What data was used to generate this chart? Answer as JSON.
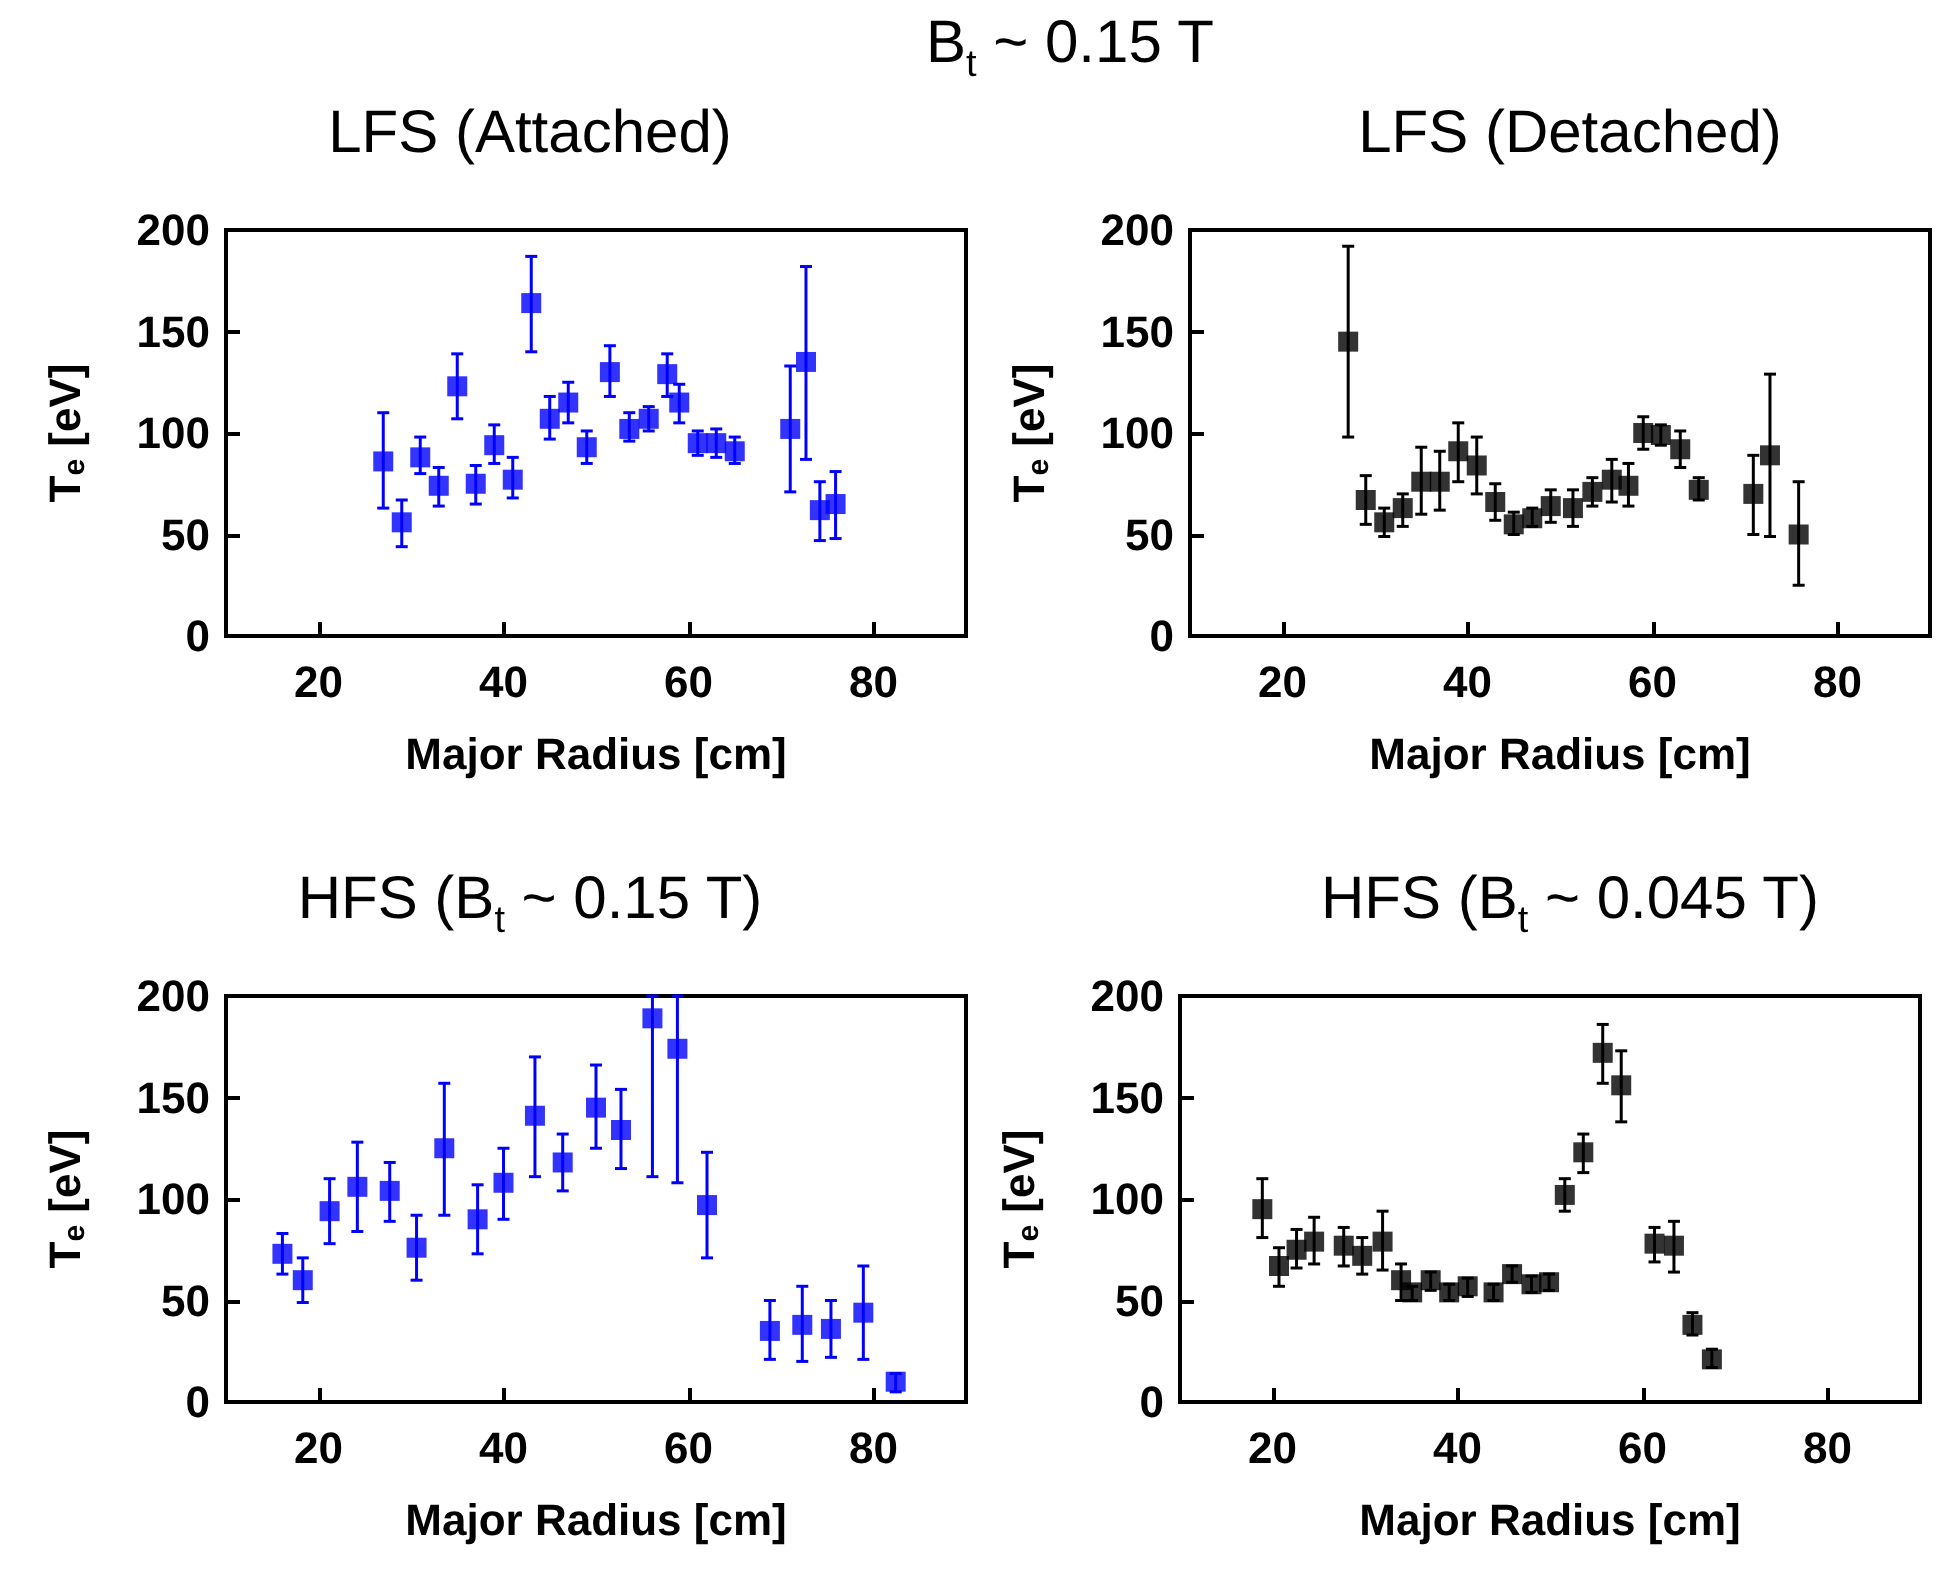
{
  "chart_data": [
    {
      "type": "scatter",
      "title": "LFS (Attached)",
      "annotations": [
        "B$_{t}$ ~ 0.15 T"
      ],
      "xlabel": "Major Radius [cm]",
      "ylabel": "T$_{e}$ [eV]",
      "xlim": [
        10,
        90
      ],
      "xticks": [
        20,
        40,
        60,
        80
      ],
      "ylim": [
        0,
        200
      ],
      "yticks": [
        0,
        50,
        100,
        150,
        200
      ],
      "grid": false,
      "marker": "square",
      "series": [
        {
          "color": "#0000ff",
          "x": [
            27,
            29,
            31,
            33,
            35,
            37,
            39,
            41,
            43,
            45,
            47,
            49,
            51.5,
            53.6,
            55.7,
            57.7,
            59,
            61,
            63,
            65,
            71,
            72.7,
            74.2,
            75.9
          ],
          "values": [
            86,
            56,
            88,
            74,
            123,
            75,
            94,
            77,
            164,
            107,
            115,
            93,
            130,
            102,
            107,
            129,
            115,
            95,
            95,
            91,
            102,
            135,
            62,
            65
          ],
          "errors": [
            [
              63,
              110
            ],
            [
              44,
              67
            ],
            [
              80,
              98
            ],
            [
              64,
              83
            ],
            [
              107,
              139
            ],
            [
              65,
              84
            ],
            [
              85,
              104
            ],
            [
              68,
              88
            ],
            [
              140,
              187
            ],
            [
              97,
              118
            ],
            [
              105,
              125
            ],
            [
              85,
              101
            ],
            [
              118,
              143
            ],
            [
              96,
              110
            ],
            [
              101,
              113
            ],
            [
              118,
              139
            ],
            [
              105,
              124
            ],
            [
              89,
              101
            ],
            [
              88,
              102
            ],
            [
              85,
              98
            ],
            [
              71,
              133
            ],
            [
              87,
              182
            ],
            [
              47,
              76
            ],
            [
              48,
              81
            ]
          ]
        }
      ]
    },
    {
      "type": "scatter",
      "title": "LFS (Detached)",
      "xlabel": "Major Radius [cm]",
      "ylabel": "T$_{e}$ [eV]",
      "xlim": [
        10,
        90
      ],
      "xticks": [
        20,
        40,
        60,
        80
      ],
      "ylim": [
        0,
        200
      ],
      "yticks": [
        0,
        50,
        100,
        150,
        200
      ],
      "grid": false,
      "marker": "square",
      "series": [
        {
          "color": "#000000",
          "x": [
            27.1,
            29,
            31,
            33,
            35,
            37,
            39,
            41,
            43,
            45,
            47,
            49,
            51.4,
            53.5,
            55.6,
            57.4,
            59,
            60.9,
            63,
            65,
            70.9,
            72.7,
            75.8
          ],
          "values": [
            145,
            67,
            56,
            63,
            76,
            76,
            91,
            84,
            66,
            55,
            58,
            64,
            63,
            71,
            77,
            74,
            100,
            99,
            92,
            72,
            70,
            89,
            50
          ],
          "errors": [
            [
              98,
              192
            ],
            [
              55,
              79
            ],
            [
              49,
              63
            ],
            [
              54,
              70
            ],
            [
              60,
              93
            ],
            [
              62,
              91
            ],
            [
              76,
              105
            ],
            [
              70,
              98
            ],
            [
              57,
              75
            ],
            [
              50,
              61
            ],
            [
              54,
              63
            ],
            [
              56,
              72
            ],
            [
              54,
              72
            ],
            [
              64,
              78
            ],
            [
              66,
              87
            ],
            [
              64,
              85
            ],
            [
              92,
              108
            ],
            [
              94,
              104
            ],
            [
              83,
              101
            ],
            [
              67,
              78
            ],
            [
              50,
              89
            ],
            [
              49,
              129
            ],
            [
              25,
              76
            ]
          ]
        }
      ]
    },
    {
      "type": "scatter",
      "title": "HFS (B$_{t}$ ~ 0.15 T)",
      "xlabel": "Major Radius [cm]",
      "ylabel": "T$_{e}$ [eV]",
      "xlim": [
        10,
        90
      ],
      "xticks": [
        20,
        40,
        60,
        80
      ],
      "ylim": [
        0,
        200
      ],
      "yticks": [
        0,
        50,
        100,
        150,
        200
      ],
      "grid": false,
      "marker": "square",
      "series": [
        {
          "color": "#0000ff",
          "x": [
            16.1,
            18.3,
            21.2,
            24.2,
            27.7,
            30.6,
            33.6,
            37.2,
            40,
            43.4,
            46.4,
            50,
            52.7,
            56.1,
            58.8,
            62,
            68.8,
            72.3,
            75.4,
            78.9,
            82.4
          ],
          "values": [
            73,
            60,
            94,
            106,
            104,
            76,
            125,
            90,
            108,
            141,
            118,
            145,
            134,
            189,
            174,
            97,
            35,
            38,
            36,
            44,
            10
          ],
          "errors": [
            [
              63,
              83
            ],
            [
              49,
              71
            ],
            [
              78,
              110
            ],
            [
              84,
              128
            ],
            [
              89,
              118
            ],
            [
              60,
              92
            ],
            [
              92,
              157
            ],
            [
              73,
              107
            ],
            [
              90,
              125
            ],
            [
              111,
              170
            ],
            [
              104,
              132
            ],
            [
              125,
              166
            ],
            [
              115,
              154
            ],
            [
              111,
              200
            ],
            [
              108,
              200
            ],
            [
              71,
              123
            ],
            [
              21,
              50
            ],
            [
              20,
              57
            ],
            [
              22,
              50
            ],
            [
              21,
              67
            ],
            [
              5,
              14
            ]
          ]
        }
      ]
    },
    {
      "type": "scatter",
      "title": "HFS (B$_{t}$ ~ 0.045 T)",
      "xlabel": "Major Radius [cm]",
      "ylabel": "T$_{e}$ [eV]",
      "xlim": [
        10,
        90
      ],
      "xticks": [
        20,
        40,
        60,
        80
      ],
      "ylim": [
        0,
        200
      ],
      "yticks": [
        0,
        50,
        100,
        150,
        200
      ],
      "grid": false,
      "marker": "square",
      "series": [
        {
          "color": "#000000",
          "x": [
            18.9,
            20.7,
            22.6,
            24.5,
            27.7,
            29.7,
            31.9,
            33.9,
            35.1,
            37.1,
            39.1,
            41.1,
            43.9,
            45.9,
            48,
            49.9,
            51.6,
            53.6,
            55.7,
            57.7,
            61.3,
            63.4,
            65.4,
            67.5
          ],
          "values": [
            95,
            67,
            75,
            79,
            77,
            72,
            79,
            60,
            54,
            60,
            54,
            57,
            54,
            63,
            58,
            59,
            102,
            123,
            172,
            156,
            78,
            77,
            38,
            21
          ],
          "errors": [
            [
              81,
              110
            ],
            [
              57,
              76
            ],
            [
              66,
              85
            ],
            [
              68,
              91
            ],
            [
              67,
              86
            ],
            [
              63,
              81
            ],
            [
              65,
              94
            ],
            [
              50,
              68
            ],
            [
              50,
              57
            ],
            [
              55,
              64
            ],
            [
              50,
              58
            ],
            [
              52,
              61
            ],
            [
              50,
              58
            ],
            [
              59,
              67
            ],
            [
              54,
              62
            ],
            [
              55,
              63
            ],
            [
              94,
              110
            ],
            [
              113,
              132
            ],
            [
              157,
              186
            ],
            [
              138,
              173
            ],
            [
              69,
              86
            ],
            [
              64,
              89
            ],
            [
              33,
              44
            ],
            [
              17,
              26
            ]
          ]
        }
      ]
    }
  ]
}
